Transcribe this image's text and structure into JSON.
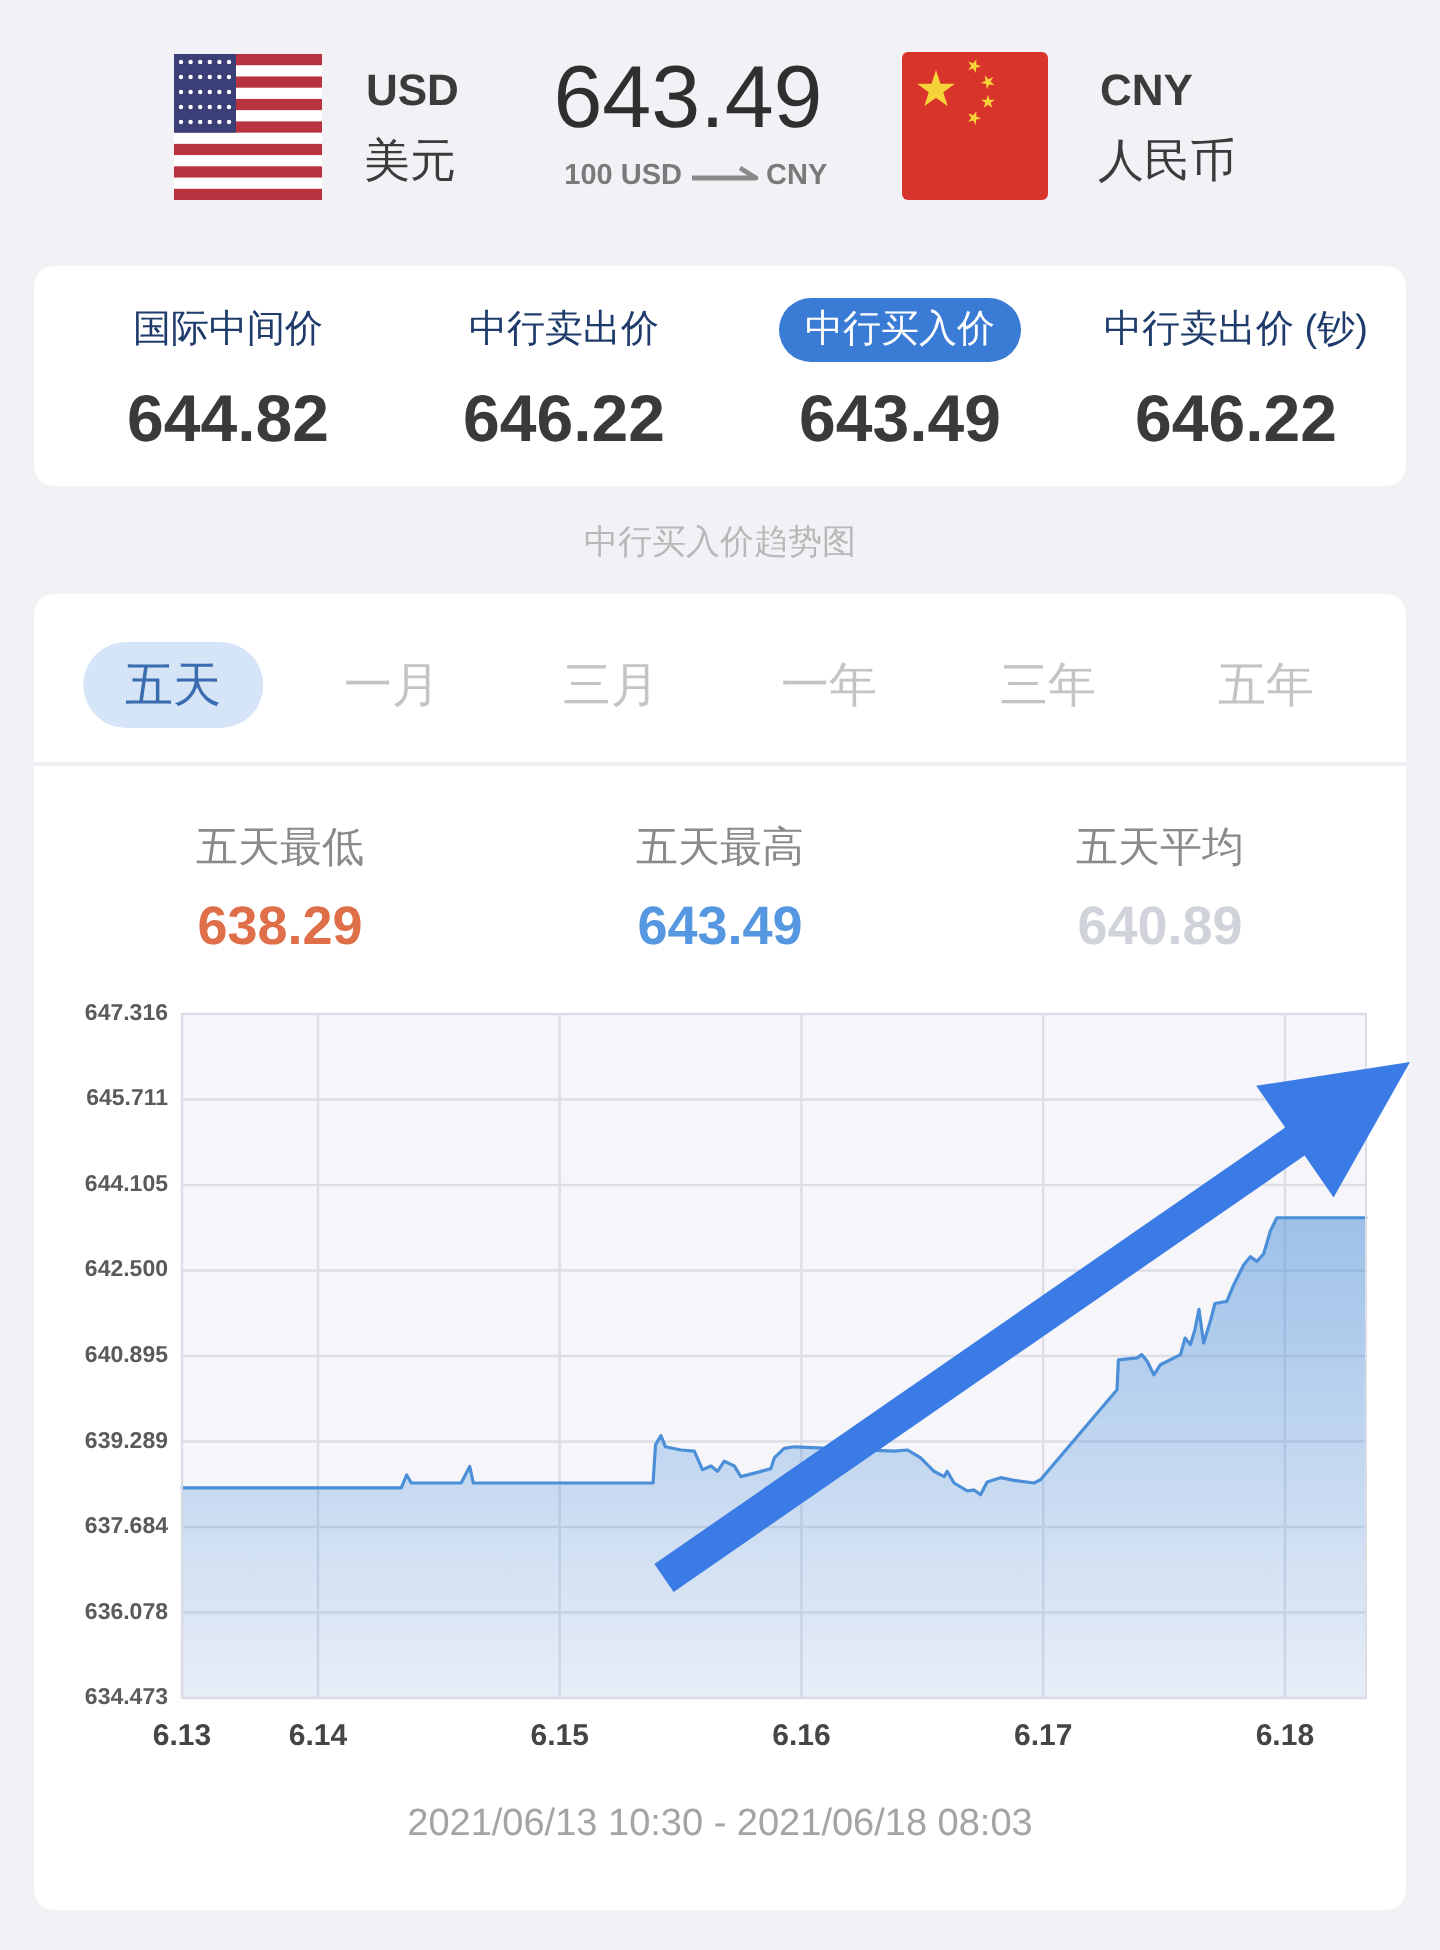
{
  "chart_data": [
    {
      "type": "other",
      "annotations": [
        "USD",
        "美元",
        "643.49",
        "100 USD",
        "CNY",
        "CNY",
        "人民币"
      ]
    },
    {
      "type": "other",
      "categories": [
        "国际中间价",
        "中行卖出价",
        "中行买入价",
        "中行卖出价 (钞)"
      ],
      "values": [
        644.82,
        646.22,
        643.49,
        646.22
      ],
      "data_labels": true,
      "colors": [
        null,
        null,
        "#3a7bd5",
        null
      ]
    },
    {
      "type": "other",
      "categories": [
        "五天",
        "一月",
        "三月",
        "一年",
        "三年",
        "五年"
      ],
      "colors": [
        "#d5e5f7",
        null,
        null,
        null,
        null,
        null
      ]
    },
    {
      "type": "other",
      "categories": [
        "五天最低",
        "五天最高",
        "五天平均"
      ],
      "values": [
        638.29,
        643.49,
        640.89
      ],
      "data_labels": true,
      "colors": [
        "#de6f48",
        "#5597e0",
        "#d0d4da"
      ]
    },
    {
      "type": "area",
      "title": "中行买入价趋势图",
      "annotations": [
        "2021/06/13 10:30 - 2021/06/18 08:03"
      ],
      "x": [
        "2021-06-13T10:30",
        "2021-06-14T08:16",
        "2021-06-14T08:48",
        "2021-06-14T09:16",
        "2021-06-14T14:13",
        "2021-06-14T15:04",
        "2021-06-14T15:25",
        "2021-06-15T09:16",
        "2021-06-15T09:31",
        "2021-06-15T10:03",
        "2021-06-15T10:30",
        "2021-06-15T12:02",
        "2021-06-15T13:22",
        "2021-06-15T14:10",
        "2021-06-15T15:01",
        "2021-06-15T15:40",
        "2021-06-15T16:20",
        "2021-06-15T17:20",
        "2021-06-15T17:59",
        "2021-06-15T19:38",
        "2021-06-15T20:58",
        "2021-06-15T21:18",
        "2021-06-15T22:17",
        "2021-06-15T23:17",
        "2021-06-16T09:12",
        "2021-06-16T10:31",
        "2021-06-16T11:50",
        "2021-06-16T13:10",
        "2021-06-16T14:10",
        "2021-06-16T14:28",
        "2021-06-16T15:09",
        "2021-06-16T16:28",
        "2021-06-16T17:08",
        "2021-06-16T17:47",
        "2021-06-16T18:26",
        "2021-06-16T19:46",
        "2021-06-16T21:06",
        "2021-06-16T23:05",
        "2021-06-16T23:44",
        "2021-06-17T07:20",
        "2021-06-17T07:28",
        "2021-06-17T09:19",
        "2021-06-17T09:48",
        "2021-06-17T10:19",
        "2021-06-17T10:59",
        "2021-06-17T11:38",
        "2021-06-17T13:38",
        "2021-06-17T14:05",
        "2021-06-17T14:37",
        "2021-06-17T15:04",
        "2021-06-17T15:28",
        "2021-06-17T15:56",
        "2021-06-17T16:36",
        "2021-06-17T17:03",
        "2021-06-17T18:14",
        "2021-06-17T18:55",
        "2021-06-17T19:55",
        "2021-06-17T20:34",
        "2021-06-17T21:13",
        "2021-06-17T21:53",
        "2021-06-17T22:33",
        "2021-06-17T23:12",
        "2021-06-18T08:03"
      ],
      "series": [
        {
          "color": "#4a8fd8",
          "values": [
            638.42,
            638.42,
            638.66,
            638.51,
            638.51,
            638.82,
            638.51,
            638.51,
            639.23,
            639.4,
            639.19,
            639.13,
            639.11,
            638.76,
            638.83,
            638.73,
            638.92,
            638.83,
            638.63,
            638.71,
            638.78,
            638.98,
            639.16,
            639.19,
            639.11,
            639.13,
            638.98,
            638.73,
            638.63,
            638.73,
            638.51,
            638.36,
            638.38,
            638.29,
            638.53,
            638.61,
            638.56,
            638.51,
            638.57,
            640.26,
            640.82,
            640.86,
            640.92,
            640.8,
            640.54,
            640.73,
            640.92,
            641.23,
            641.11,
            641.39,
            641.77,
            641.14,
            641.55,
            641.88,
            641.92,
            642.23,
            642.61,
            642.76,
            642.67,
            642.81,
            643.24,
            643.49,
            643.49
          ]
        }
      ],
      "xlim": [
        "2021-06-13T10:30",
        "2021-06-18T08:03"
      ],
      "xticks": [
        {
          "value": "2021-06-13T10:30",
          "label": "6.13"
        },
        {
          "value": "2021-06-14",
          "label": "6.14"
        },
        {
          "value": "2021-06-15",
          "label": "6.15"
        },
        {
          "value": "2021-06-16",
          "label": "6.16"
        },
        {
          "value": "2021-06-17",
          "label": "6.17"
        },
        {
          "value": "2021-06-18",
          "label": "6.18"
        }
      ],
      "ylim": [
        634.473,
        647.316
      ],
      "yticks": [
        634.473,
        636.078,
        637.684,
        639.289,
        640.895,
        {
          "value": 642.5,
          "label": "642.500"
        },
        644.105,
        645.711,
        647.316
      ],
      "grid": true
    }
  ]
}
